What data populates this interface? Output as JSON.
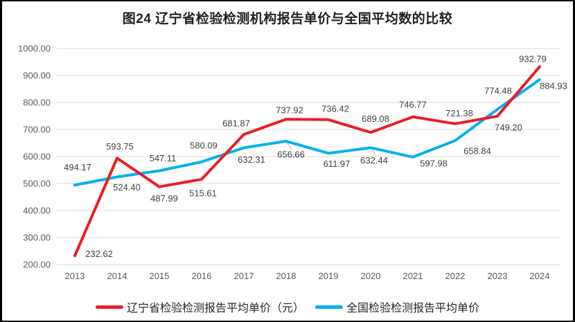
{
  "chart_data": {
    "type": "line",
    "title": "图24 辽宁省检验检测机构报告单价与全国平均数的比较",
    "categories": [
      "2013",
      "2014",
      "2015",
      "2016",
      "2017",
      "2018",
      "2019",
      "2020",
      "2021",
      "2022",
      "2023",
      "2024"
    ],
    "series": [
      {
        "key": "liaoning",
        "name": "辽宁省检验检测报告平均单价（元）",
        "color": "#EC1C24",
        "values": [
          232.62,
          593.75,
          487.99,
          515.61,
          681.87,
          737.92,
          736.42,
          689.08,
          746.77,
          721.38,
          749.2,
          932.79
        ],
        "label_offsets": [
          [
            35,
            -3
          ],
          [
            4,
            -17
          ],
          [
            7,
            17
          ],
          [
            2,
            20
          ],
          [
            -11,
            -16
          ],
          [
            5,
            -13
          ],
          [
            10,
            -16
          ],
          [
            7,
            -20
          ],
          [
            0,
            -18
          ],
          [
            6,
            -15
          ],
          [
            16,
            16
          ],
          [
            -10,
            -11
          ]
        ],
        "leader_line_indices": []
      },
      {
        "key": "national",
        "name": "全国检验检测报告平均单价",
        "color": "#00B0F0",
        "values": [
          494.17,
          524.4,
          547.11,
          580.09,
          632.31,
          656.66,
          611.97,
          632.44,
          597.98,
          658.84,
          774.48,
          884.93
        ],
        "label_offsets": [
          [
            4,
            -26
          ],
          [
            14,
            15
          ],
          [
            5,
            -18
          ],
          [
            3,
            -24
          ],
          [
            11,
            17
          ],
          [
            7,
            19
          ],
          [
            12,
            15
          ],
          [
            5,
            18
          ],
          [
            30,
            9
          ],
          [
            32,
            15
          ],
          [
            1,
            -27
          ],
          [
            20,
            9
          ]
        ],
        "leader_line_indices": [
          5,
          7
        ]
      }
    ],
    "ylim": [
      200,
      1000
    ],
    "y_tick_step": 100,
    "y_tick_labels": [
      "1000.00",
      "900.00",
      "800.00",
      "700.00",
      "600.00",
      "500.00",
      "400.00",
      "300.00",
      "200.00"
    ],
    "value_decimals": 2,
    "grid": true,
    "legend_position": "bottom",
    "draw_order": "first-series-on-top"
  },
  "colors": {
    "background": "#FFFFFF",
    "frame_border": "#000000",
    "grid": "#D9D9D9",
    "axis_text": "#595959",
    "data_label_text": "#404040",
    "leader_line": "#A6A6A6",
    "title_text": "#1F1F1F"
  }
}
